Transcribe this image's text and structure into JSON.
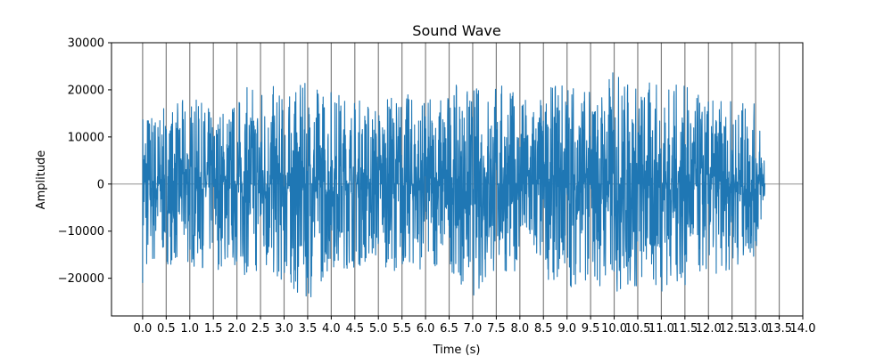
{
  "chart_data": {
    "type": "line",
    "title": "Sound Wave",
    "xlabel": "Time (s)",
    "ylabel": "Amplitude",
    "xlim": [
      -0.66,
      14.0
    ],
    "ylim": [
      -28000,
      30000
    ],
    "x_ticks": [
      0.0,
      0.5,
      1.0,
      1.5,
      2.0,
      2.5,
      3.0,
      3.5,
      4.0,
      4.5,
      5.0,
      5.5,
      6.0,
      6.5,
      7.0,
      7.5,
      8.0,
      8.5,
      9.0,
      9.5,
      10.0,
      10.5,
      11.0,
      11.5,
      12.0,
      12.5,
      13.0,
      13.5,
      14.0
    ],
    "x_tick_labels": [
      "0.0",
      "0.5",
      "1.0",
      "1.5",
      "2.0",
      "2.5",
      "3.0",
      "3.5",
      "4.0",
      "4.5",
      "5.0",
      "5.5",
      "6.0",
      "6.5",
      "7.0",
      "7.5",
      "8.0",
      "8.5",
      "9.0",
      "9.5",
      "10.0",
      "10.5",
      "11.0",
      "11.5",
      "12.0",
      "12.5",
      "13.0",
      "13.5",
      "14.0"
    ],
    "y_ticks": [
      -20000,
      -10000,
      0,
      10000,
      20000,
      30000
    ],
    "y_tick_labels": [
      "−20000",
      "−10000",
      "0",
      "10000",
      "20000",
      "30000"
    ],
    "vertical_gridlines": [
      0.0,
      0.5,
      1.0,
      1.5,
      2.0,
      2.5,
      3.0,
      3.5,
      4.0,
      4.5,
      5.0,
      5.5,
      6.0,
      6.5,
      7.0,
      7.5,
      8.0,
      8.5,
      9.0,
      9.5,
      10.0,
      10.5,
      11.0,
      11.5,
      12.0,
      12.5,
      13.0,
      13.5
    ],
    "horizontal_line": 0,
    "series": [
      {
        "color": "#1f77b4",
        "duration_s": 13.2,
        "peak_positive": 25000,
        "peak_negative": -25000,
        "envelope_points": [
          {
            "x": 0.0,
            "max": 18000,
            "min": -21000
          },
          {
            "x": 0.5,
            "max": 16000,
            "min": -17000
          },
          {
            "x": 1.0,
            "max": 19000,
            "min": -18000
          },
          {
            "x": 1.5,
            "max": 16000,
            "min": -18000
          },
          {
            "x": 2.0,
            "max": 19000,
            "min": -19000
          },
          {
            "x": 2.5,
            "max": 23500,
            "min": -20000
          },
          {
            "x": 3.0,
            "max": 19000,
            "min": -22000
          },
          {
            "x": 3.5,
            "max": 22000,
            "min": -25000
          },
          {
            "x": 4.0,
            "max": 21500,
            "min": -18000
          },
          {
            "x": 4.5,
            "max": 19000,
            "min": -18000
          },
          {
            "x": 5.0,
            "max": 18000,
            "min": -17000
          },
          {
            "x": 5.5,
            "max": 20000,
            "min": -19000
          },
          {
            "x": 6.0,
            "max": 18000,
            "min": -18000
          },
          {
            "x": 6.5,
            "max": 21000,
            "min": -18000
          },
          {
            "x": 7.0,
            "max": 21000,
            "min": -24500
          },
          {
            "x": 7.5,
            "max": 23000,
            "min": -20000
          },
          {
            "x": 8.0,
            "max": 19000,
            "min": -18000
          },
          {
            "x": 8.5,
            "max": 19000,
            "min": -20000
          },
          {
            "x": 9.0,
            "max": 24500,
            "min": -22000
          },
          {
            "x": 9.5,
            "max": 20000,
            "min": -21000
          },
          {
            "x": 10.0,
            "max": 25000,
            "min": -24000
          },
          {
            "x": 10.5,
            "max": 22000,
            "min": -23000
          },
          {
            "x": 11.0,
            "max": 22000,
            "min": -23000
          },
          {
            "x": 11.5,
            "max": 21000,
            "min": -22000
          },
          {
            "x": 12.0,
            "max": 18000,
            "min": -20000
          },
          {
            "x": 12.5,
            "max": 18000,
            "min": -18000
          },
          {
            "x": 13.0,
            "max": 17000,
            "min": -16000
          },
          {
            "x": 13.2,
            "max": 10000,
            "min": -4000
          }
        ]
      }
    ],
    "grid": "x-only",
    "legend": "none"
  }
}
